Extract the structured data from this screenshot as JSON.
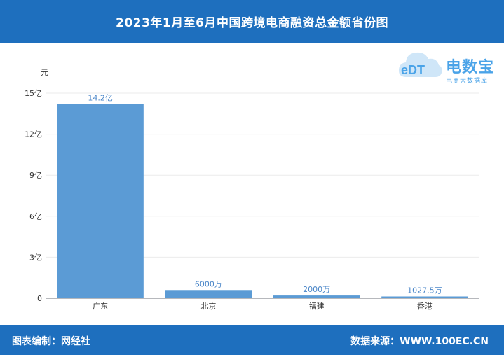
{
  "header": {
    "title": "2023年1月至6月中国跨境电商融资总金额省份图"
  },
  "logo": {
    "text": "电数宝",
    "subtitle": "电商大数据库"
  },
  "footer": {
    "editor": "图表编制：网经社",
    "source": "数据来源：WWW.100EC.CN"
  },
  "colors": {
    "header_bg": "#1e6fbe",
    "bar": "#5b9bd5",
    "data_label": "#4a86c8"
  },
  "chart_data": {
    "type": "bar",
    "title": "2023年1月至6月中国跨境电商融资总金额省份图",
    "ylabel": "元",
    "xlabel": "",
    "ylim": [
      0,
      1500000000
    ],
    "yticks": [
      {
        "value": 0,
        "label": "0"
      },
      {
        "value": 300000000,
        "label": "3亿"
      },
      {
        "value": 600000000,
        "label": "6亿"
      },
      {
        "value": 900000000,
        "label": "9亿"
      },
      {
        "value": 1200000000,
        "label": "12亿"
      },
      {
        "value": 1500000000,
        "label": "15亿"
      }
    ],
    "categories": [
      "广东",
      "北京",
      "福建",
      "香港"
    ],
    "values": [
      1420000000,
      60000000,
      20000000,
      10275000
    ],
    "data_labels": [
      "14.2亿",
      "6000万",
      "2000万",
      "1027.5万"
    ],
    "grid": true
  }
}
